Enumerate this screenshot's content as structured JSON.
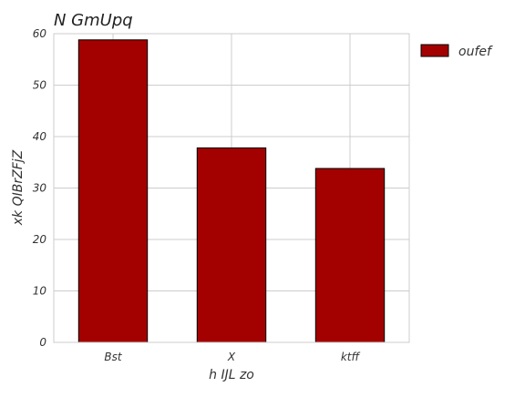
{
  "chart_data": {
    "type": "bar",
    "title": "N GmUpq",
    "xlabel": "h IJL zo",
    "ylabel": "xk QIBrZFjZ",
    "categories": [
      "Bst",
      "X",
      "ktff"
    ],
    "series": [
      {
        "name": "oufef",
        "values": [
          58.8,
          37.8,
          33.8
        ],
        "color": "#a30000"
      }
    ],
    "ylim": [
      0,
      60
    ],
    "yticks": [
      0,
      10,
      20,
      30,
      40,
      50,
      60
    ],
    "grid": true,
    "legend": "outside-top-right"
  }
}
